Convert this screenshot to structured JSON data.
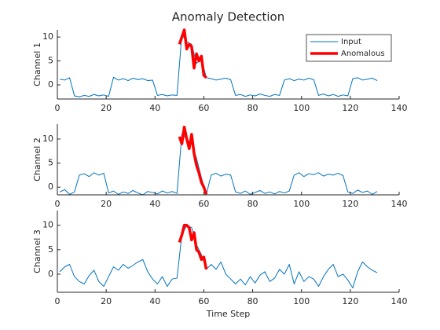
{
  "chart_data": [
    {
      "type": "line",
      "title": "Anomaly Detection",
      "ylabel": "Channel 1",
      "legend": "upper right",
      "xlim": [
        0,
        140
      ],
      "xticks": [
        0,
        20,
        40,
        60,
        80,
        100,
        120,
        140
      ],
      "ylim": [
        -2.95,
        11.5
      ],
      "yticks": [
        0,
        5,
        10
      ],
      "series": [
        {
          "name": "Input",
          "color": "#0072bd",
          "x": [
            1,
            3,
            5,
            7,
            9,
            11,
            13,
            15,
            17,
            19,
            21,
            23,
            25,
            27,
            29,
            31,
            33,
            35,
            37,
            39,
            41,
            43,
            45,
            47,
            49,
            51,
            53,
            55,
            57,
            59,
            61,
            63,
            65,
            67,
            69,
            71,
            73,
            75,
            77,
            79,
            81,
            83,
            85,
            87,
            89,
            91,
            93,
            95,
            97,
            99,
            101,
            103,
            105,
            107,
            109,
            111,
            113,
            115,
            117,
            119,
            121,
            123,
            125,
            127,
            129,
            131
          ],
          "values": [
            1.2,
            1.0,
            1.5,
            -2.3,
            -2.5,
            -2.2,
            -2.4,
            -2.0,
            -2.3,
            -2.1,
            -2.4,
            1.6,
            1.0,
            1.3,
            0.9,
            1.4,
            1.1,
            1.3,
            0.9,
            1.0,
            -2.2,
            -2.0,
            -2.3,
            -2.1,
            -2.2,
            10.5,
            9.0,
            8.5,
            4.5,
            5.5,
            1.5,
            1.3,
            1.0,
            1.2,
            1.4,
            1.1,
            -2.2,
            -2.0,
            -2.4,
            -2.1,
            -2.3,
            -1.9,
            -2.2,
            -2.4,
            -2.0,
            -2.2,
            1.0,
            1.3,
            0.9,
            1.2,
            1.0,
            1.4,
            1.1,
            -2.2,
            -1.9,
            -2.3,
            -2.0,
            -2.4,
            -2.1,
            -2.3,
            1.3,
            1.5,
            1.0,
            1.2,
            1.4,
            0.9
          ]
        },
        {
          "name": "Anomalous",
          "color": "#ff0000",
          "x": [
            50,
            51,
            52,
            53,
            54,
            55,
            56,
            57,
            58,
            59,
            60,
            61
          ],
          "values": [
            8.5,
            10,
            11.5,
            7.5,
            8.5,
            8,
            3.5,
            6.5,
            5,
            6,
            2,
            1.5
          ]
        }
      ]
    },
    {
      "type": "line",
      "ylabel": "Channel 2",
      "xlim": [
        0,
        140
      ],
      "xticks": [
        0,
        20,
        40,
        60,
        80,
        100,
        120,
        140
      ],
      "ylim": [
        -1.6,
        13.1
      ],
      "yticks": [
        0,
        5,
        10
      ],
      "series": [
        {
          "color": "#0072bd",
          "x": [
            1,
            3,
            5,
            7,
            9,
            11,
            13,
            15,
            17,
            19,
            21,
            23,
            25,
            27,
            29,
            31,
            33,
            35,
            37,
            39,
            41,
            43,
            45,
            47,
            49,
            51,
            53,
            55,
            57,
            59,
            61,
            63,
            65,
            67,
            69,
            71,
            73,
            75,
            77,
            79,
            81,
            83,
            85,
            87,
            89,
            91,
            93,
            95,
            97,
            99,
            101,
            103,
            105,
            107,
            109,
            111,
            113,
            115,
            117,
            119,
            121,
            123,
            125,
            127,
            129,
            131
          ],
          "values": [
            -1,
            -0.5,
            -1.5,
            -1,
            2.5,
            2.8,
            2.2,
            3,
            2.5,
            2.9,
            -1.2,
            -0.8,
            -1.5,
            -1,
            -1.3,
            -0.7,
            -1.2,
            -1.6,
            -0.9,
            -1.1,
            -1.4,
            -0.8,
            -1.2,
            -0.9,
            -1.3,
            11,
            10,
            9,
            6,
            2,
            -1.5,
            2.5,
            2.9,
            2.3,
            2.7,
            2.5,
            -1,
            -1.3,
            -0.8,
            -1.5,
            -1.1,
            -0.7,
            -1.3,
            -1.0,
            -1.4,
            -0.9,
            -1.2,
            -0.8,
            2.5,
            3,
            2.2,
            2.8,
            2.6,
            3,
            2.3,
            2.7,
            2.5,
            2.9,
            2.4,
            -1,
            -1.3,
            -0.6,
            -1.1,
            -0.8,
            -1.5,
            -0.9
          ]
        },
        {
          "color": "#ff0000",
          "x": [
            50,
            51,
            52,
            53,
            54,
            55,
            56,
            57,
            58,
            59,
            60,
            61
          ],
          "values": [
            10.5,
            9,
            12.5,
            10,
            8,
            11,
            7,
            4.5,
            3,
            1,
            0,
            -1.5
          ]
        }
      ]
    },
    {
      "type": "line",
      "ylabel": "Channel 3",
      "xlabel": "Time Step",
      "xlim": [
        0,
        140
      ],
      "xticks": [
        0,
        20,
        40,
        60,
        80,
        100,
        120,
        140
      ],
      "ylim": [
        -3.7,
        13
      ],
      "yticks": [
        0,
        5,
        10
      ],
      "series": [
        {
          "color": "#0072bd",
          "x": [
            1,
            3,
            5,
            7,
            9,
            11,
            13,
            15,
            17,
            19,
            21,
            23,
            25,
            27,
            29,
            31,
            33,
            35,
            37,
            39,
            41,
            43,
            45,
            47,
            49,
            51,
            53,
            55,
            57,
            59,
            61,
            63,
            65,
            67,
            69,
            71,
            73,
            75,
            77,
            79,
            81,
            83,
            85,
            87,
            89,
            91,
            93,
            95,
            97,
            99,
            101,
            103,
            105,
            107,
            109,
            111,
            113,
            115,
            117,
            119,
            121,
            123,
            125,
            127,
            129,
            131
          ],
          "values": [
            0.5,
            1.5,
            2,
            -0.5,
            -1.5,
            -2,
            -0.3,
            0.8,
            -1.5,
            -2.5,
            -0.5,
            1.5,
            0.8,
            2,
            1.2,
            1.8,
            2.5,
            3,
            0.5,
            -1,
            -2,
            -0.5,
            -2.5,
            -1,
            -0.8,
            8,
            10,
            9.5,
            6,
            4,
            1,
            2,
            1,
            2.5,
            0,
            -1,
            -2,
            -1,
            -2.2,
            -0.5,
            -1.8,
            -0.2,
            0.5,
            -1.5,
            -0.8,
            1,
            0,
            2,
            -2,
            0.5,
            -1.5,
            -0.5,
            -1,
            -2.5,
            -0.5,
            1,
            2,
            -0.5,
            0,
            -1.2,
            -2.8,
            0.5,
            2.5,
            1.5,
            0.8,
            0.3
          ]
        },
        {
          "color": "#ff0000",
          "x": [
            50,
            51,
            52,
            53,
            54,
            55,
            56,
            57,
            58,
            59,
            60,
            61
          ],
          "values": [
            6.5,
            8,
            10,
            10,
            9.5,
            7,
            8.5,
            5,
            4.5,
            3,
            3.5,
            1
          ]
        }
      ]
    }
  ]
}
